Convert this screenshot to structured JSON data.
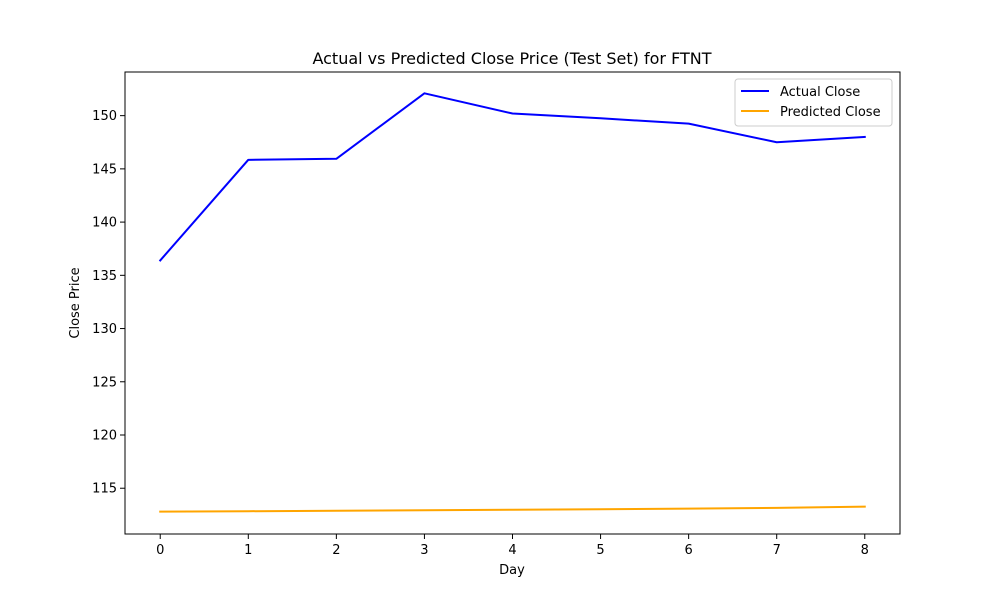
{
  "chart_data": {
    "type": "line",
    "title": "Actual vs Predicted Close Price (Test Set) for FTNT",
    "xlabel": "Day",
    "ylabel": "Close Price",
    "x": [
      0,
      1,
      2,
      3,
      4,
      5,
      6,
      7,
      8
    ],
    "xticks": [
      "0",
      "1",
      "2",
      "3",
      "4",
      "5",
      "6",
      "7",
      "8"
    ],
    "yticks": [
      "115",
      "120",
      "125",
      "130",
      "135",
      "140",
      "145",
      "150"
    ],
    "xlim": [
      -0.4,
      8.4
    ],
    "ylim": [
      110.7,
      154.1
    ],
    "grid": false,
    "legend_position": "top-right",
    "series": [
      {
        "name": "Actual Close",
        "color": "#0000ff",
        "values": [
          136.4,
          145.85,
          145.95,
          152.1,
          150.2,
          149.75,
          149.25,
          147.5,
          148.0
        ]
      },
      {
        "name": "Predicted Close",
        "color": "#ffa500",
        "values": [
          112.8,
          112.84,
          112.88,
          112.93,
          112.98,
          113.03,
          113.08,
          113.15,
          113.27
        ]
      }
    ]
  }
}
